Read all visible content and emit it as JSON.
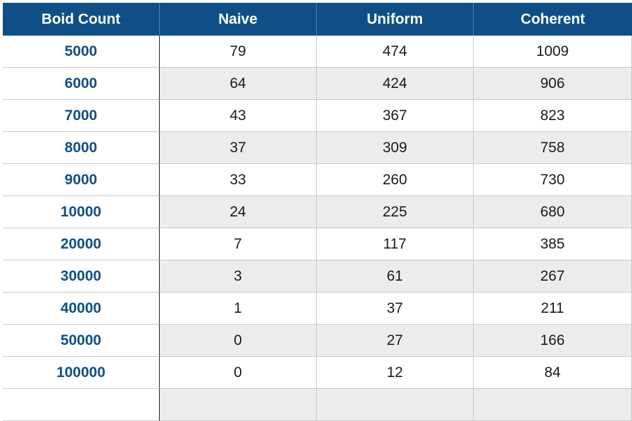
{
  "table": {
    "headers": [
      "Boid Count",
      "Naive",
      "Uniform",
      "Coherent"
    ],
    "rows": [
      [
        "5000",
        "79",
        "474",
        "1009"
      ],
      [
        "6000",
        "64",
        "424",
        "906"
      ],
      [
        "7000",
        "43",
        "367",
        "823"
      ],
      [
        "8000",
        "37",
        "309",
        "758"
      ],
      [
        "9000",
        "33",
        "260",
        "730"
      ],
      [
        "10000",
        "24",
        "225",
        "680"
      ],
      [
        "20000",
        "7",
        "117",
        "385"
      ],
      [
        "30000",
        "3",
        "61",
        "267"
      ],
      [
        "40000",
        "1",
        "37",
        "211"
      ],
      [
        "50000",
        "0",
        "27",
        "166"
      ],
      [
        "100000",
        "0",
        "12",
        "84"
      ]
    ]
  },
  "colors": {
    "header_bg": "#0f4f86",
    "row_label": "#0f4f86",
    "alt_row_bg": "#ececec"
  }
}
